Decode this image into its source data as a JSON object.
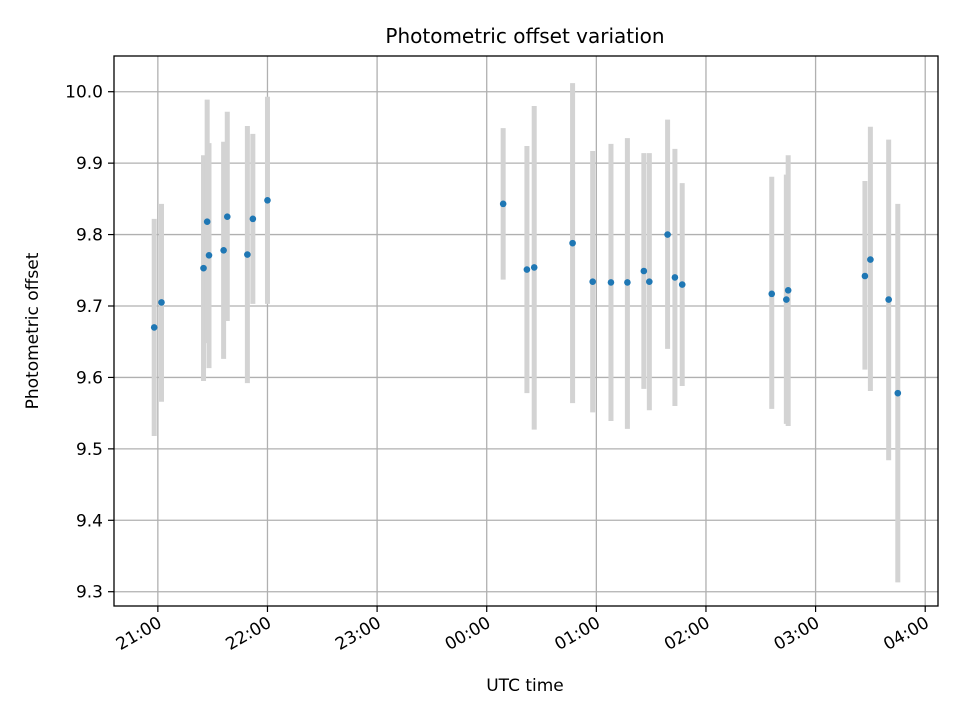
{
  "chart_data": {
    "type": "scatter",
    "title": "Photometric offset variation",
    "xlabel": "UTC time",
    "ylabel": "Photometric offset",
    "x_tick_labels": [
      "21:00",
      "22:00",
      "23:00",
      "00:00",
      "01:00",
      "02:00",
      "03:00",
      "04:00"
    ],
    "y_tick_labels": [
      "9.3",
      "9.4",
      "9.5",
      "9.6",
      "9.7",
      "9.8",
      "9.9",
      "10.0"
    ],
    "ylim": [
      9.28,
      10.05
    ],
    "xlim": [
      "20:36",
      "04:07"
    ],
    "grid": true,
    "error_bars": true,
    "colors": {
      "marker": "#1f77b4",
      "errorbar": "#d3d3d3",
      "grid": "#b0b0b0"
    },
    "points": [
      {
        "t": "20:58",
        "y": 9.67,
        "lo": 9.518,
        "hi": 9.822
      },
      {
        "t": "21:02",
        "y": 9.705,
        "lo": 9.566,
        "hi": 9.843
      },
      {
        "t": "21:25",
        "y": 9.753,
        "lo": 9.595,
        "hi": 9.911
      },
      {
        "t": "21:27",
        "y": 9.818,
        "lo": 9.648,
        "hi": 9.989
      },
      {
        "t": "21:28",
        "y": 9.771,
        "lo": 9.613,
        "hi": 9.928
      },
      {
        "t": "21:36",
        "y": 9.778,
        "lo": 9.626,
        "hi": 9.93
      },
      {
        "t": "21:38",
        "y": 9.825,
        "lo": 9.679,
        "hi": 9.972
      },
      {
        "t": "21:49",
        "y": 9.772,
        "lo": 9.592,
        "hi": 9.952
      },
      {
        "t": "21:52",
        "y": 9.822,
        "lo": 9.703,
        "hi": 9.941
      },
      {
        "t": "22:00",
        "y": 9.848,
        "lo": 9.703,
        "hi": 9.993
      },
      {
        "t": "00:09",
        "y": 9.843,
        "lo": 9.737,
        "hi": 9.949
      },
      {
        "t": "00:22",
        "y": 9.751,
        "lo": 9.578,
        "hi": 9.924
      },
      {
        "t": "00:26",
        "y": 9.754,
        "lo": 9.527,
        "hi": 9.98
      },
      {
        "t": "00:47",
        "y": 9.788,
        "lo": 9.564,
        "hi": 10.012
      },
      {
        "t": "00:58",
        "y": 9.734,
        "lo": 9.551,
        "hi": 9.917
      },
      {
        "t": "01:08",
        "y": 9.733,
        "lo": 9.539,
        "hi": 9.927
      },
      {
        "t": "01:17",
        "y": 9.733,
        "lo": 9.528,
        "hi": 9.935
      },
      {
        "t": "01:26",
        "y": 9.749,
        "lo": 9.584,
        "hi": 9.914
      },
      {
        "t": "01:29",
        "y": 9.734,
        "lo": 9.554,
        "hi": 9.914
      },
      {
        "t": "01:39",
        "y": 9.8,
        "lo": 9.64,
        "hi": 9.961
      },
      {
        "t": "01:43",
        "y": 9.74,
        "lo": 9.56,
        "hi": 9.92
      },
      {
        "t": "01:47",
        "y": 9.73,
        "lo": 9.588,
        "hi": 9.872
      },
      {
        "t": "02:36",
        "y": 9.717,
        "lo": 9.556,
        "hi": 9.881
      },
      {
        "t": "02:44",
        "y": 9.709,
        "lo": 9.535,
        "hi": 9.884
      },
      {
        "t": "02:45",
        "y": 9.722,
        "lo": 9.532,
        "hi": 9.911
      },
      {
        "t": "03:27",
        "y": 9.742,
        "lo": 9.611,
        "hi": 9.875
      },
      {
        "t": "03:30",
        "y": 9.765,
        "lo": 9.581,
        "hi": 9.951
      },
      {
        "t": "03:40",
        "y": 9.709,
        "lo": 9.484,
        "hi": 9.933
      },
      {
        "t": "03:45",
        "y": 9.578,
        "lo": 9.313,
        "hi": 9.843
      }
    ]
  }
}
